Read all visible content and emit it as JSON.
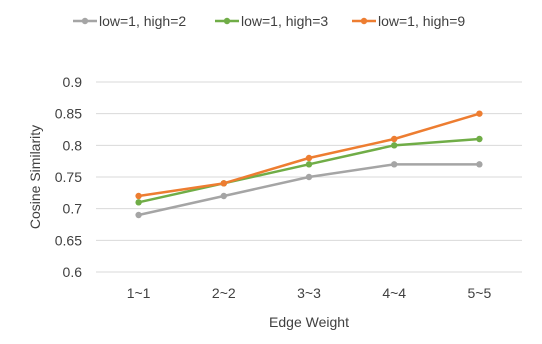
{
  "chart_data": {
    "type": "line",
    "title": "",
    "xlabel": "Edge Weight",
    "ylabel": "Cosine Similarity",
    "categories": [
      "1~1",
      "2~2",
      "3~3",
      "4~4",
      "5~5"
    ],
    "ylim": [
      0.6,
      0.9
    ],
    "yticks": [
      "0.6",
      "0.65",
      "0.7",
      "0.75",
      "0.8",
      "0.85",
      "0.9"
    ],
    "grid": true,
    "legend_position": "top",
    "series": [
      {
        "name": "low=1, high=2",
        "color": "#a5a5a5",
        "values": [
          0.69,
          0.72,
          0.75,
          0.77,
          0.77
        ]
      },
      {
        "name": "low=1, high=3",
        "color": "#70ad47",
        "values": [
          0.71,
          0.74,
          0.77,
          0.8,
          0.81
        ]
      },
      {
        "name": "low=1, high=9",
        "color": "#ed7d31",
        "values": [
          0.72,
          0.74,
          0.78,
          0.81,
          0.85
        ]
      }
    ]
  }
}
